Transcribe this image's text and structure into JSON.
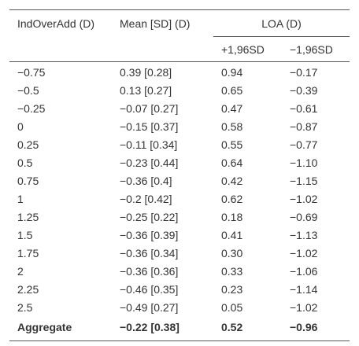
{
  "table": {
    "header": {
      "col1": "IndOverAdd (D)",
      "col2": "Mean [SD] (D)",
      "group": "LOA (D)",
      "sub": [
        "+1,96SD",
        "−1,96SD"
      ]
    },
    "rows": [
      [
        "−0.75",
        "0.39 [0.28]",
        "0.94",
        "−0.17"
      ],
      [
        "−0.5",
        "0.13 [0.27]",
        "0.65",
        "−0.39"
      ],
      [
        "−0.25",
        "−0.07 [0.27]",
        "0.47",
        "−0.61"
      ],
      [
        "0",
        "−0.15 [0.37]",
        "0.58",
        "−0.87"
      ],
      [
        "0.25",
        "−0.11 [0.34]",
        "0.55",
        "−0.77"
      ],
      [
        "0.5",
        "−0.23 [0.44]",
        "0.64",
        "−1.10"
      ],
      [
        "0.75",
        "−0.36 [0.4]",
        "0.42",
        "−1.15"
      ],
      [
        "1",
        "−0.2 [0.42]",
        "0.62",
        "−1.02"
      ],
      [
        "1.25",
        "−0.25 [0.22]",
        "0.18",
        "−0.69"
      ],
      [
        "1.5",
        "−0.36 [0.39]",
        "0.41",
        "−1.13"
      ],
      [
        "1.75",
        "−0.36 [0.34]",
        "0.30",
        "−1.02"
      ],
      [
        "2",
        "−0.36 [0.36]",
        "0.33",
        "−1.06"
      ],
      [
        "2.25",
        "−0.46 [0.35]",
        "0.23",
        "−1.14"
      ],
      [
        "2.5",
        "−0.49 [0.27]",
        "0.05",
        "−1.02"
      ],
      [
        "Aggregate",
        "−0.22 [0.38]",
        "0.52",
        "−0.96"
      ]
    ]
  }
}
